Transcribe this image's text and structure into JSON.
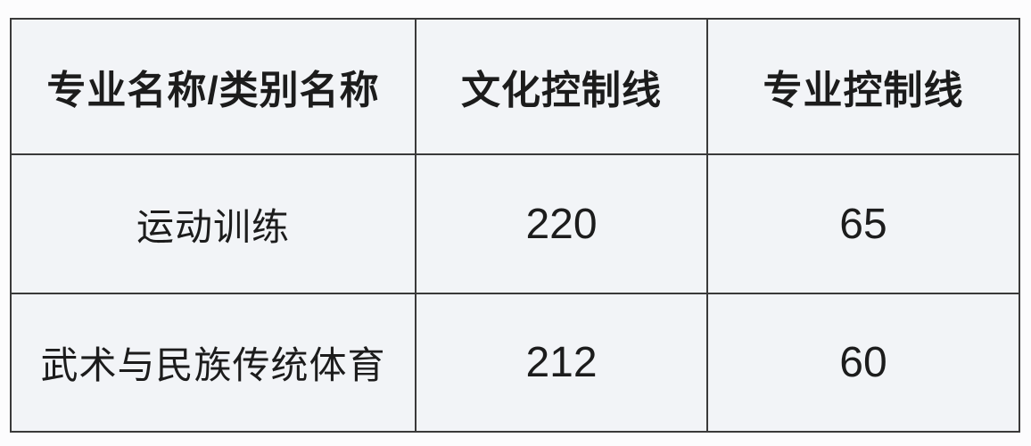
{
  "table": {
    "headers": [
      "专业名称/类别名称",
      "文化控制线",
      "专业控制线"
    ],
    "rows": [
      {
        "major": "运动训练",
        "culture_line": "220",
        "professional_line": "65"
      },
      {
        "major": "武术与民族传统体育",
        "culture_line": "212",
        "professional_line": "60"
      }
    ]
  },
  "colors": {
    "page_background": "#fcfcfd",
    "cell_background": "#f2f4f7",
    "border": "#3a3a3a",
    "text": "#1c1c1c"
  }
}
